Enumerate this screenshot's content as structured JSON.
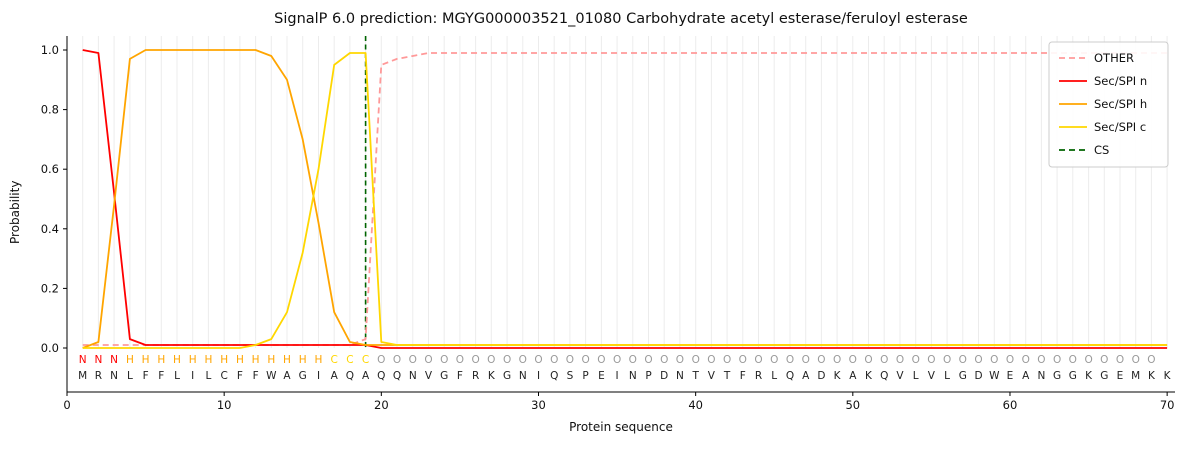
{
  "chart_data": {
    "type": "line",
    "title": "SignalP 6.0 prediction: MGYG000003521_01080 Carbohydrate acetyl esterase/feruloyl esterase",
    "xlabel": "Protein sequence",
    "ylabel": "Probability",
    "xlim": [
      0,
      70.5
    ],
    "ylim": [
      0.0,
      1.0
    ],
    "xticks": [
      0,
      10,
      20,
      30,
      40,
      50,
      60,
      70
    ],
    "yticks": [
      0,
      0.2,
      0.4,
      0.6,
      0.8,
      1
    ],
    "grid": "vertical-per-residue",
    "legend_position": "upper right",
    "x": [
      1,
      2,
      3,
      4,
      5,
      6,
      7,
      8,
      9,
      10,
      11,
      12,
      13,
      14,
      15,
      16,
      17,
      18,
      19,
      20,
      21,
      22,
      23,
      24,
      25,
      26,
      27,
      28,
      29,
      30,
      31,
      32,
      33,
      34,
      35,
      36,
      37,
      38,
      39,
      40,
      41,
      42,
      43,
      44,
      45,
      46,
      47,
      48,
      49,
      50,
      51,
      52,
      53,
      54,
      55,
      56,
      57,
      58,
      59,
      60,
      61,
      62,
      63,
      64,
      65,
      66,
      67,
      68,
      69,
      70
    ],
    "series": [
      {
        "name": "OTHER",
        "color": "#ff9999",
        "style": "dashed",
        "values": [
          0.01,
          0.01,
          0.01,
          0.01,
          0.01,
          0.01,
          0.01,
          0.01,
          0.01,
          0.01,
          0.01,
          0.01,
          0.01,
          0.01,
          0.01,
          0.01,
          0.01,
          0.01,
          0.03,
          0.95,
          0.97,
          0.98,
          0.99,
          0.99,
          0.99,
          0.99,
          0.99,
          0.99,
          0.99,
          0.99,
          0.99,
          0.99,
          0.99,
          0.99,
          0.99,
          0.99,
          0.99,
          0.99,
          0.99,
          0.99,
          0.99,
          0.99,
          0.99,
          0.99,
          0.99,
          0.99,
          0.99,
          0.99,
          0.99,
          0.99,
          0.99,
          0.99,
          0.99,
          0.99,
          0.99,
          0.99,
          0.99,
          0.99,
          0.99,
          0.99,
          0.99,
          0.99,
          0.99,
          0.99,
          0.99,
          0.99,
          0.99,
          0.99,
          0.99,
          0.99
        ]
      },
      {
        "name": "Sec/SPI n",
        "color": "#ff0000",
        "style": "solid",
        "values": [
          1.0,
          0.99,
          0.52,
          0.03,
          0.01,
          0.01,
          0.01,
          0.01,
          0.01,
          0.01,
          0.01,
          0.01,
          0.01,
          0.01,
          0.01,
          0.01,
          0.01,
          0.01,
          0.01,
          0.0,
          0.0,
          0.0,
          0.0,
          0.0,
          0.0,
          0.0,
          0.0,
          0.0,
          0.0,
          0.0,
          0.0,
          0.0,
          0.0,
          0.0,
          0.0,
          0.0,
          0.0,
          0.0,
          0.0,
          0.0,
          0.0,
          0.0,
          0.0,
          0.0,
          0.0,
          0.0,
          0.0,
          0.0,
          0.0,
          0.0,
          0.0,
          0.0,
          0.0,
          0.0,
          0.0,
          0.0,
          0.0,
          0.0,
          0.0,
          0.0,
          0.0,
          0.0,
          0.0,
          0.0,
          0.0,
          0.0,
          0.0,
          0.0,
          0.0,
          0.0
        ]
      },
      {
        "name": "Sec/SPI h",
        "color": "#ffa500",
        "style": "solid",
        "values": [
          0.0,
          0.02,
          0.48,
          0.97,
          1.0,
          1.0,
          1.0,
          1.0,
          1.0,
          1.0,
          1.0,
          1.0,
          0.98,
          0.9,
          0.7,
          0.42,
          0.12,
          0.02,
          0.01,
          0.01,
          0.01,
          0.01,
          0.01,
          0.01,
          0.01,
          0.01,
          0.01,
          0.01,
          0.01,
          0.01,
          0.01,
          0.01,
          0.01,
          0.01,
          0.01,
          0.01,
          0.01,
          0.01,
          0.01,
          0.01,
          0.01,
          0.01,
          0.01,
          0.01,
          0.01,
          0.01,
          0.01,
          0.01,
          0.01,
          0.01,
          0.01,
          0.01,
          0.01,
          0.01,
          0.01,
          0.01,
          0.01,
          0.01,
          0.01,
          0.01,
          0.01,
          0.01,
          0.01,
          0.01,
          0.01,
          0.01,
          0.01,
          0.01,
          0.01,
          0.01
        ]
      },
      {
        "name": "Sec/SPI c",
        "color": "#ffd700",
        "style": "solid",
        "values": [
          0.0,
          0.0,
          0.0,
          0.0,
          0.0,
          0.0,
          0.0,
          0.0,
          0.0,
          0.0,
          0.0,
          0.01,
          0.03,
          0.12,
          0.32,
          0.6,
          0.95,
          0.99,
          0.99,
          0.02,
          0.01,
          0.01,
          0.01,
          0.01,
          0.01,
          0.01,
          0.01,
          0.01,
          0.01,
          0.01,
          0.01,
          0.01,
          0.01,
          0.01,
          0.01,
          0.01,
          0.01,
          0.01,
          0.01,
          0.01,
          0.01,
          0.01,
          0.01,
          0.01,
          0.01,
          0.01,
          0.01,
          0.01,
          0.01,
          0.01,
          0.01,
          0.01,
          0.01,
          0.01,
          0.01,
          0.01,
          0.01,
          0.01,
          0.01,
          0.01,
          0.01,
          0.01,
          0.01,
          0.01,
          0.01,
          0.01,
          0.01,
          0.01,
          0.01,
          0.01
        ]
      }
    ],
    "cs_line": {
      "name": "CS",
      "x": 19,
      "color": "#006400",
      "style": "dashed"
    },
    "sequence": "MRNLFFLILCFFWAGIAQAQQNVGFRKGNIQSPEINPDNTVTFRLQADKAKQVLVLGDWEANGGKGEMKK",
    "region_labels": "NNNHHHHHHHHHHHHHCCCOOOOOOOOOOOOOOOOOOOOOOOOOOOOOOOOOOOOOOOOOOOOOOOOOO",
    "region_colors": {
      "N": "#ff0000",
      "H": "#ffa500",
      "C": "#ffd700",
      "O": "#9a9a9a"
    },
    "sequence_color": "#222222"
  }
}
